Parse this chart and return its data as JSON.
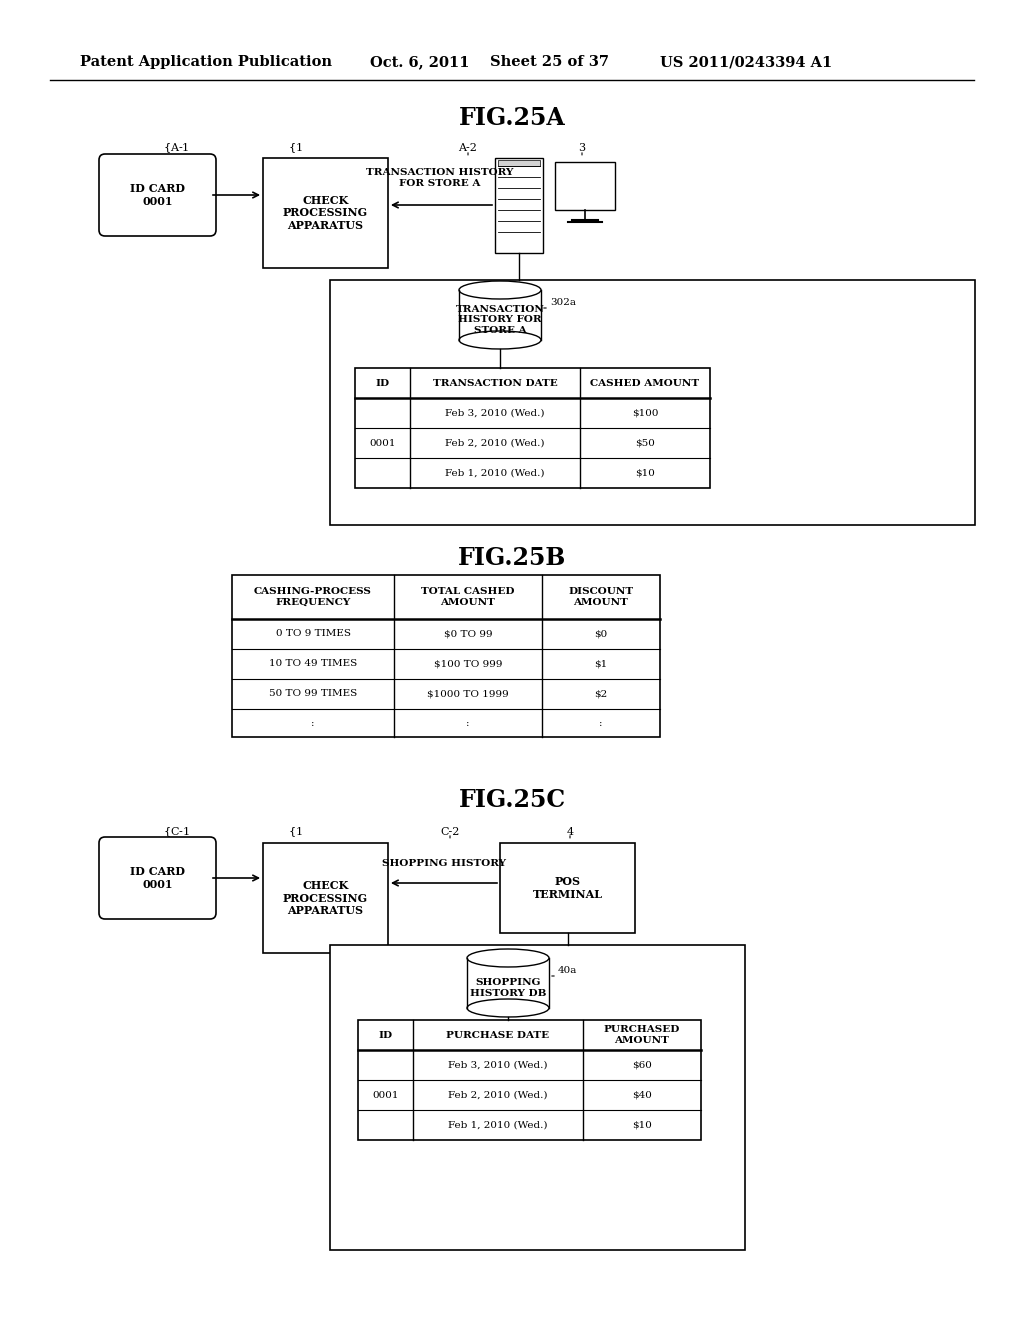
{
  "background_color": "#ffffff",
  "header_text": "Patent Application Publication",
  "header_date": "Oct. 6, 2011",
  "header_sheet": "Sheet 25 of 37",
  "header_patent": "US 2011/0243394 A1",
  "fig25a_title": "FIG.25A",
  "fig25b_title": "FIG.25B",
  "fig25c_title": "FIG.25C",
  "fig25b_table": {
    "headers": [
      "CASHING-PROCESS\nFREQUENCY",
      "TOTAL CASHED\nAMOUNT",
      "DISCOUNT\nAMOUNT"
    ],
    "rows": [
      [
        "0 TO 9 TIMES",
        "$0 TO 99",
        "$0"
      ],
      [
        "10 TO 49 TIMES",
        "$100 TO 999",
        "$1"
      ],
      [
        "50 TO 99 TIMES",
        "$1000 TO 1999",
        "$2"
      ],
      [
        ":",
        ":",
        ":"
      ]
    ]
  },
  "fig25a_table": {
    "headers": [
      "ID",
      "TRANSACTION DATE",
      "CASHED AMOUNT"
    ],
    "rows": [
      [
        "",
        "Feb 3, 2010 (Wed.)",
        "$100"
      ],
      [
        "0001",
        "Feb 2, 2010 (Wed.)",
        "$50"
      ],
      [
        "",
        "Feb 1, 2010 (Wed.)",
        "$10"
      ]
    ]
  },
  "fig25c_table": {
    "headers": [
      "ID",
      "PURCHASE DATE",
      "PURCHASED\nAMOUNT"
    ],
    "rows": [
      [
        "",
        "Feb 3, 2010 (Wed.)",
        "$60"
      ],
      [
        "0001",
        "Feb 2, 2010 (Wed.)",
        "$40"
      ],
      [
        "",
        "Feb 1, 2010 (Wed.)",
        "$10"
      ]
    ]
  }
}
